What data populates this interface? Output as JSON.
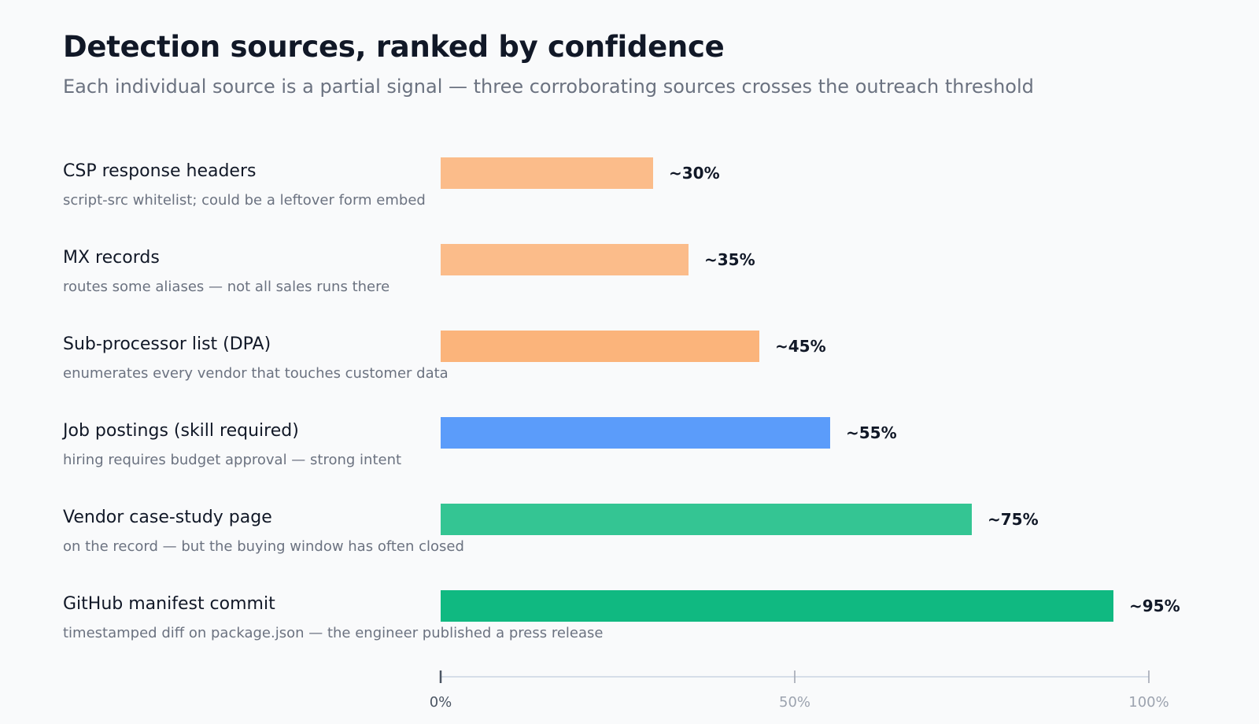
{
  "title": "Detection sources, ranked by confidence",
  "subtitle": "Each individual source is a partial signal — three corroborating sources crosses the outreach threshold",
  "chart_data": {
    "type": "bar",
    "orientation": "horizontal",
    "title": "Detection sources, ranked by confidence",
    "subtitle": "Each individual source is a partial signal — three corroborating sources crosses the outreach threshold",
    "xlim": [
      0,
      100
    ],
    "grid": false,
    "ticks": [
      "0%",
      "50%",
      "100%"
    ],
    "categories": [
      "CSP response headers",
      "MX records",
      "Sub-processor list (DPA)",
      "Job postings (skill required)",
      "Vendor case-study page",
      "GitHub manifest commit"
    ],
    "notes": [
      "script-src whitelist; could be a leftover form embed",
      "routes some aliases — not all sales runs there",
      "enumerates every vendor that touches customer data",
      "hiring requires budget approval — strong intent",
      "on the record — but the buying window has often closed",
      "timestamped diff on package.json — the engineer published a press release"
    ],
    "values": [
      30,
      35,
      45,
      55,
      75,
      95
    ],
    "value_labels": [
      "~30%",
      "~35%",
      "~45%",
      "~55%",
      "~75%",
      "~95%"
    ],
    "colors": [
      "#fbbc8a",
      "#fbbc8a",
      "#fbb47b",
      "#5b9cfa",
      "#34c593",
      "#10b981"
    ]
  }
}
